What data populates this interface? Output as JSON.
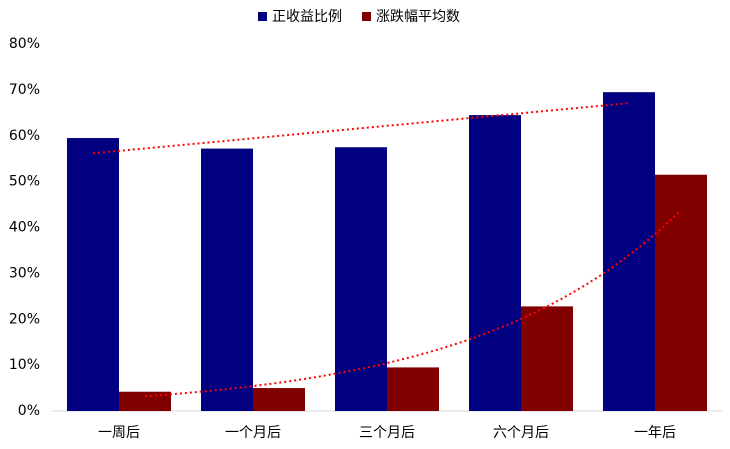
{
  "chart_data": {
    "type": "bar",
    "categories": [
      "一周后",
      "一个月后",
      "三个月后",
      "六个月后",
      "一年后"
    ],
    "series": [
      {
        "name": "正收益比例",
        "color": "#000080",
        "values": [
          59.5,
          57.2,
          57.5,
          64.5,
          69.5
        ]
      },
      {
        "name": "涨跌幅平均数",
        "color": "#800000",
        "values": [
          4.2,
          5.0,
          9.5,
          22.8,
          51.5
        ]
      }
    ],
    "ylim": [
      0,
      80
    ],
    "yticks": [
      {
        "value": 0,
        "label": "0%"
      },
      {
        "value": 10,
        "label": "10%"
      },
      {
        "value": 20,
        "label": "20%"
      },
      {
        "value": 30,
        "label": "30%"
      },
      {
        "value": 40,
        "label": "40%"
      },
      {
        "value": 50,
        "label": "50%"
      },
      {
        "value": 60,
        "label": "60%"
      },
      {
        "value": 70,
        "label": "70%"
      },
      {
        "value": 80,
        "label": "80%"
      }
    ],
    "trendline_color": "#ff0000"
  }
}
